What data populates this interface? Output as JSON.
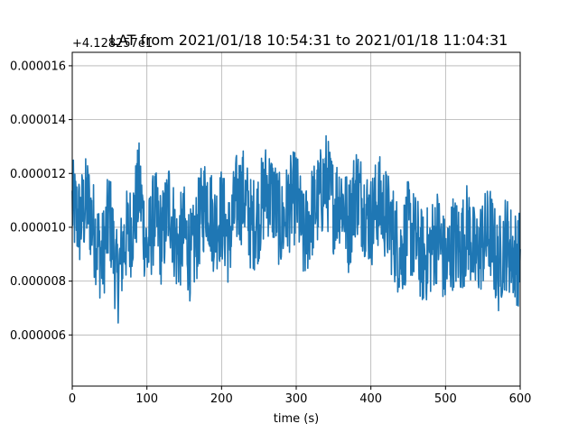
{
  "chart_data": {
    "type": "line",
    "title": "LAT from 2021/01/18 10:54:31 to 2021/01/18 11:04:31",
    "xlabel": "time (s)",
    "ylabel": "",
    "offset_text": "+4.128257e1",
    "xlim": [
      0,
      600
    ],
    "ylim": [
      4.1e-06,
      1.65e-05
    ],
    "x_ticks": [
      0,
      100,
      200,
      300,
      400,
      500,
      600
    ],
    "x_tick_labels": [
      "0",
      "100",
      "200",
      "300",
      "400",
      "500",
      "600"
    ],
    "y_ticks": [
      6e-06,
      8e-06,
      1e-05,
      1.2e-05,
      1.4e-05,
      1.6e-05
    ],
    "y_tick_labels": [
      "0.000006",
      "0.000008",
      "0.000010",
      "0.000012",
      "0.000014",
      "0.000016"
    ],
    "grid": true,
    "line_color": "#1f77b4",
    "series": [
      {
        "x": [
          0,
          10,
          20,
          30,
          40,
          50,
          60,
          70,
          80,
          90,
          100,
          110,
          120,
          130,
          140,
          150,
          160,
          170,
          180,
          190,
          200,
          210,
          220,
          230,
          240,
          250,
          260,
          270,
          280,
          290,
          300,
          310,
          320,
          330,
          340,
          350,
          360,
          370,
          380,
          390,
          400,
          410,
          420,
          430,
          440,
          450,
          460,
          470,
          480,
          490,
          500,
          510,
          520,
          530,
          540,
          550,
          560,
          570,
          580,
          590,
          600
        ],
        "values": [
          1.08e-05,
          1.02e-05,
          1.1e-05,
          9.8e-06,
          8.8e-06,
          1.05e-05,
          8e-06,
          9.5e-06,
          1e-05,
          1.15e-05,
          9e-06,
          1.05e-05,
          9.5e-06,
          1.1e-05,
          9.2e-06,
          9.8e-06,
          8.8e-06,
          1.02e-05,
          1.12e-05,
          1e-05,
          1.05e-05,
          9.5e-06,
          1.1e-05,
          1.12e-05,
          1e-05,
          1.05e-05,
          1.15e-05,
          1.1e-05,
          1e-05,
          1.08e-05,
          1.12e-05,
          9.5e-06,
          1.05e-05,
          1.1e-05,
          1.18e-05,
          1.08e-05,
          1.12e-05,
          1e-05,
          1.15e-05,
          1.08e-05,
          1.02e-05,
          1.1e-05,
          1.05e-05,
          9.8e-06,
          9e-06,
          1e-05,
          9.5e-06,
          8.8e-06,
          9.2e-06,
          9.8e-06,
          8.5e-06,
          9.5e-06,
          9.2e-06,
          1e-05,
          8.8e-06,
          9.5e-06,
          9.8e-06,
          8.5e-06,
          9.5e-06,
          9e-06,
          8.8e-06
        ]
      }
    ]
  }
}
